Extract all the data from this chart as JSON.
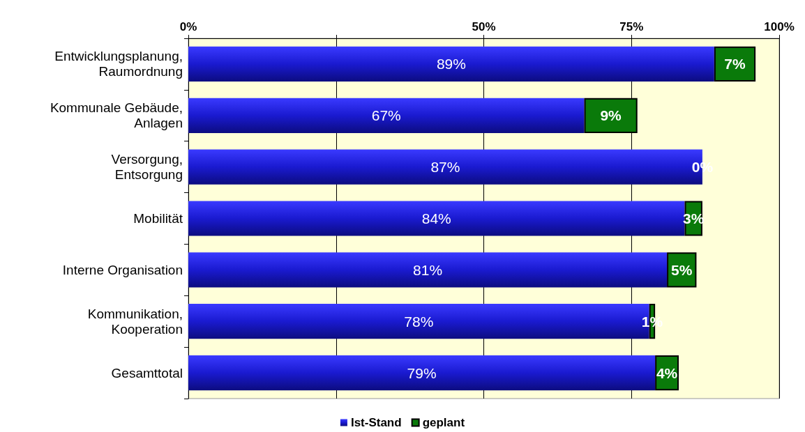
{
  "chart_data": {
    "type": "bar",
    "orientation": "horizontal",
    "stacked": true,
    "categories": [
      "Entwicklungsplanung,\nRaumordnung",
      "Kommunale Gebäude,\nAnlagen",
      "Versorgung,\nEntsorgung",
      "Mobilität",
      "Interne Organisation",
      "Kommunikation,\nKooperation",
      "Gesamttotal"
    ],
    "series": [
      {
        "name": "Ist-Stand",
        "color": "#1a1ad0",
        "values": [
          89,
          67,
          87,
          84,
          81,
          78,
          79
        ],
        "value_labels": [
          "89%",
          "67%",
          "87%",
          "84%",
          "81%",
          "78%",
          "79%"
        ]
      },
      {
        "name": "geplant",
        "color": "#0a7a0a",
        "values": [
          7,
          9,
          0,
          3,
          5,
          1,
          4
        ],
        "value_labels": [
          "7%",
          "9%",
          "0%",
          "3%",
          "5%",
          "1%",
          "4%"
        ]
      }
    ],
    "xlim": [
      0,
      100
    ],
    "xticks": [
      {
        "value": 0,
        "label": "0%"
      },
      {
        "value": 25,
        "label": null
      },
      {
        "value": 50,
        "label": "50%"
      },
      {
        "value": 75,
        "label": "75%"
      },
      {
        "value": 100,
        "label": "100%"
      }
    ],
    "grid": "x",
    "legend": "bottom"
  }
}
